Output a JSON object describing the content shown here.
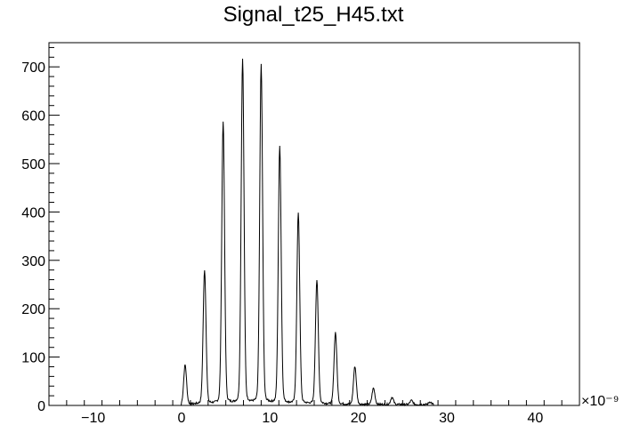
{
  "chart_data": {
    "type": "line",
    "title": "Signal_t25_H45.txt",
    "xlabel": "",
    "ylabel": "",
    "x_multiplier_label": "×10⁻⁹",
    "xlim": [
      -15,
      45
    ],
    "ylim": [
      0,
      750
    ],
    "x_ticks": [
      -10,
      0,
      10,
      20,
      30,
      40
    ],
    "x_tick_labels": [
      "−10",
      "0",
      "10",
      "20",
      "30",
      "40"
    ],
    "y_ticks": [
      0,
      100,
      200,
      300,
      400,
      500,
      600,
      700
    ],
    "y_tick_labels": [
      "0",
      "100",
      "200",
      "300",
      "400",
      "500",
      "600",
      "700"
    ],
    "grid": false,
    "line_color": "#000000",
    "series": [
      {
        "peaks": [
          {
            "x": 0.4,
            "y": 78
          },
          {
            "x": 2.6,
            "y": 265
          },
          {
            "x": 4.7,
            "y": 558
          },
          {
            "x": 6.9,
            "y": 682
          },
          {
            "x": 9.0,
            "y": 670
          },
          {
            "x": 11.1,
            "y": 510
          },
          {
            "x": 13.2,
            "y": 378
          },
          {
            "x": 15.3,
            "y": 245
          },
          {
            "x": 17.4,
            "y": 142
          },
          {
            "x": 19.6,
            "y": 75
          },
          {
            "x": 21.7,
            "y": 32
          },
          {
            "x": 23.8,
            "y": 14
          },
          {
            "x": 26.0,
            "y": 8
          },
          {
            "x": 28.1,
            "y": 5
          }
        ],
        "signal_start": 0.0,
        "signal_end": 28.5
      }
    ]
  }
}
